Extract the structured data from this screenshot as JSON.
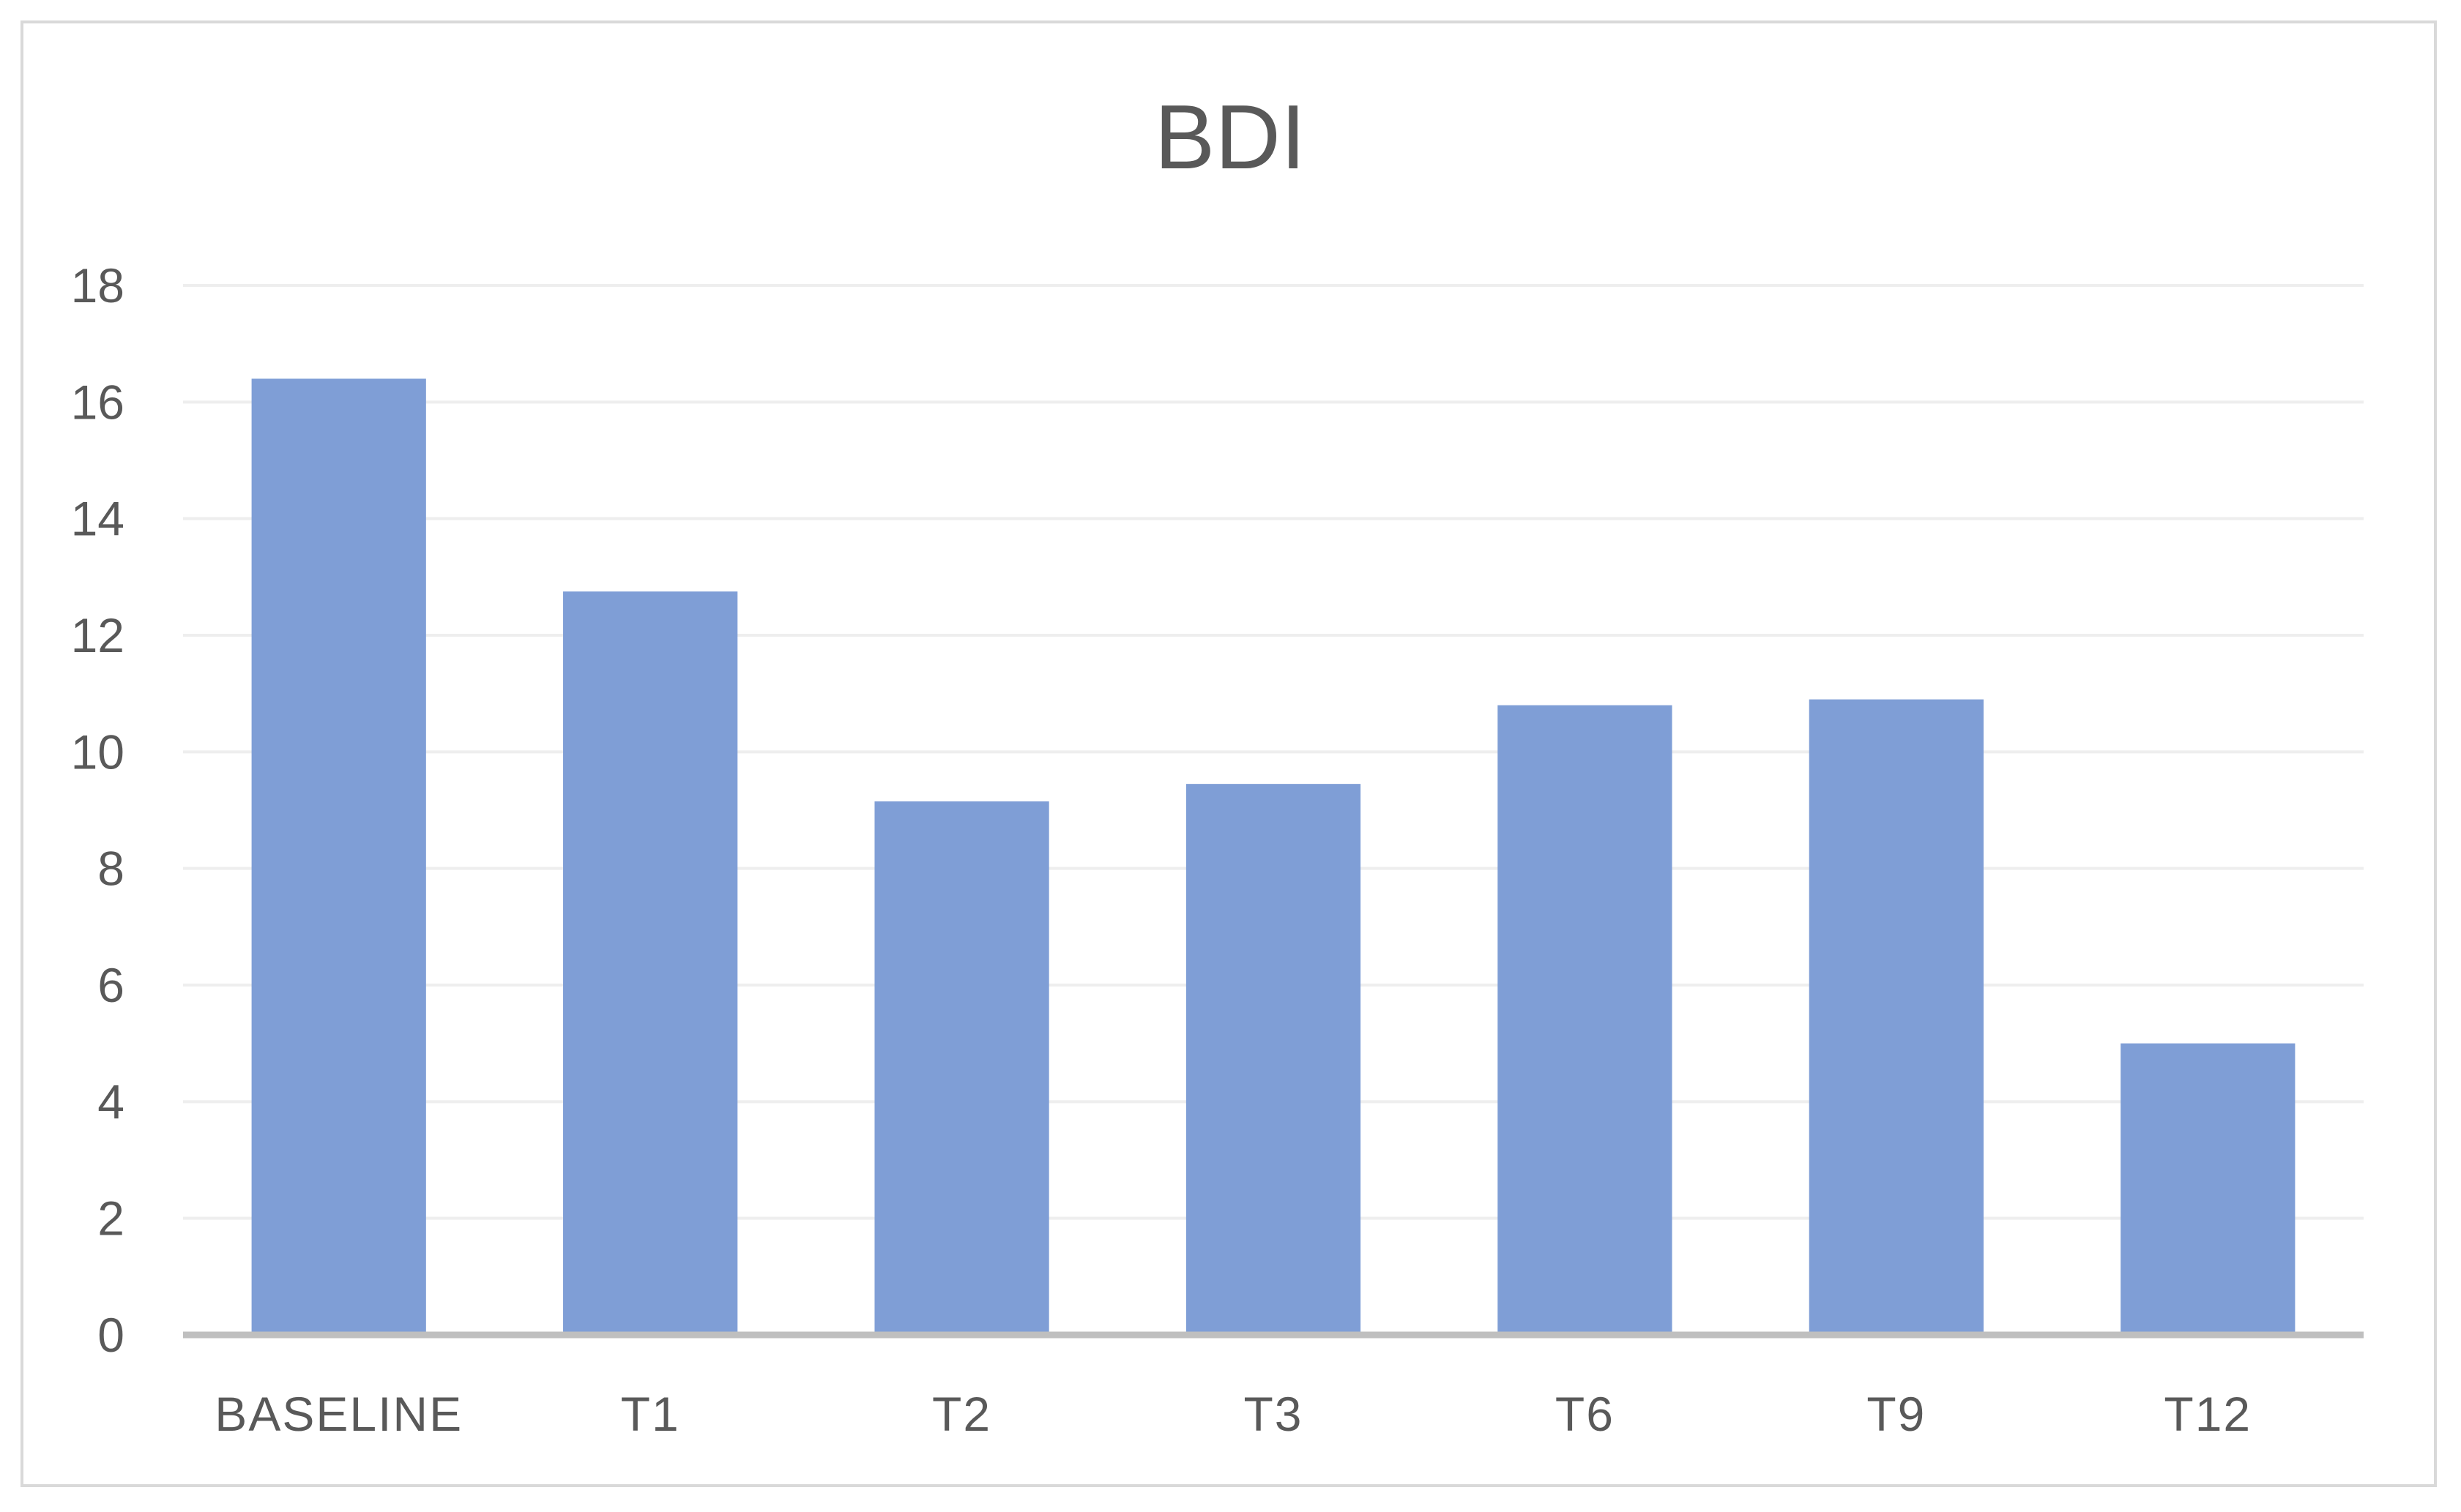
{
  "chart_data": {
    "type": "bar",
    "title": "BDI",
    "xlabel": "",
    "ylabel": "",
    "categories": [
      "BASELINE",
      "T1",
      "T2",
      "T3",
      "T6",
      "T9",
      "T12"
    ],
    "series": [
      {
        "values": [
          16.4,
          12.75,
          9.15,
          9.45,
          10.8,
          10.9,
          5.0
        ],
        "color": "#7f9ed6"
      }
    ],
    "ylim": [
      0,
      18
    ],
    "yticks": [
      "0",
      "2",
      "4",
      "6",
      "8",
      "10",
      "12",
      "14",
      "16",
      "18"
    ],
    "grid": true,
    "legend": "none"
  }
}
